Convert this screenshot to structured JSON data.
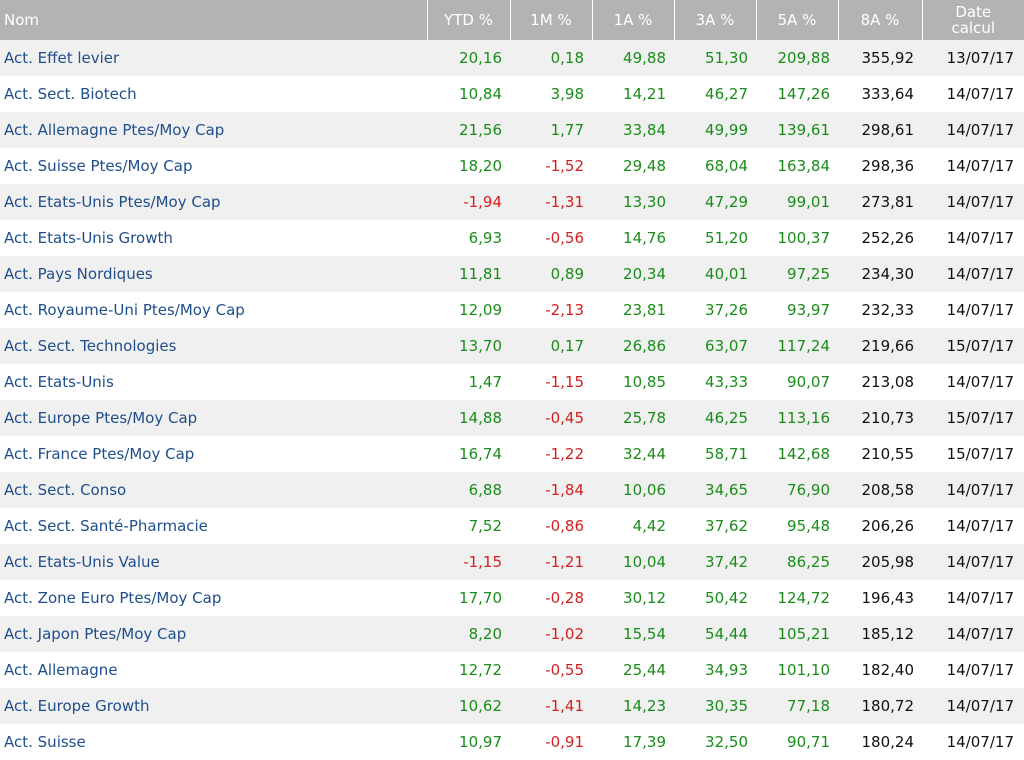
{
  "columns": {
    "name": "Nom",
    "ytd": "YTD %",
    "m1": "1M %",
    "a1": "1A %",
    "a3": "3A %",
    "a5": "5A %",
    "a8": "8A %",
    "date": "Date calcul"
  },
  "rows": [
    {
      "name": "Act. Effet levier",
      "ytd": "20,16",
      "m1": "0,18",
      "a1": "49,88",
      "a3": "51,30",
      "a5": "209,88",
      "a8": "355,92",
      "date": "13/07/17"
    },
    {
      "name": "Act. Sect. Biotech",
      "ytd": "10,84",
      "m1": "3,98",
      "a1": "14,21",
      "a3": "46,27",
      "a5": "147,26",
      "a8": "333,64",
      "date": "14/07/17"
    },
    {
      "name": "Act. Allemagne Ptes/Moy Cap",
      "ytd": "21,56",
      "m1": "1,77",
      "a1": "33,84",
      "a3": "49,99",
      "a5": "139,61",
      "a8": "298,61",
      "date": "14/07/17"
    },
    {
      "name": "Act. Suisse Ptes/Moy Cap",
      "ytd": "18,20",
      "m1": "-1,52",
      "a1": "29,48",
      "a3": "68,04",
      "a5": "163,84",
      "a8": "298,36",
      "date": "14/07/17"
    },
    {
      "name": "Act. Etats-Unis Ptes/Moy Cap",
      "ytd": "-1,94",
      "m1": "-1,31",
      "a1": "13,30",
      "a3": "47,29",
      "a5": "99,01",
      "a8": "273,81",
      "date": "14/07/17"
    },
    {
      "name": "Act. Etats-Unis Growth",
      "ytd": "6,93",
      "m1": "-0,56",
      "a1": "14,76",
      "a3": "51,20",
      "a5": "100,37",
      "a8": "252,26",
      "date": "14/07/17"
    },
    {
      "name": "Act. Pays Nordiques",
      "ytd": "11,81",
      "m1": "0,89",
      "a1": "20,34",
      "a3": "40,01",
      "a5": "97,25",
      "a8": "234,30",
      "date": "14/07/17"
    },
    {
      "name": "Act. Royaume-Uni Ptes/Moy Cap",
      "ytd": "12,09",
      "m1": "-2,13",
      "a1": "23,81",
      "a3": "37,26",
      "a5": "93,97",
      "a8": "232,33",
      "date": "14/07/17"
    },
    {
      "name": "Act. Sect. Technologies",
      "ytd": "13,70",
      "m1": "0,17",
      "a1": "26,86",
      "a3": "63,07",
      "a5": "117,24",
      "a8": "219,66",
      "date": "15/07/17"
    },
    {
      "name": "Act. Etats-Unis",
      "ytd": "1,47",
      "m1": "-1,15",
      "a1": "10,85",
      "a3": "43,33",
      "a5": "90,07",
      "a8": "213,08",
      "date": "14/07/17"
    },
    {
      "name": "Act. Europe Ptes/Moy Cap",
      "ytd": "14,88",
      "m1": "-0,45",
      "a1": "25,78",
      "a3": "46,25",
      "a5": "113,16",
      "a8": "210,73",
      "date": "15/07/17"
    },
    {
      "name": "Act. France Ptes/Moy Cap",
      "ytd": "16,74",
      "m1": "-1,22",
      "a1": "32,44",
      "a3": "58,71",
      "a5": "142,68",
      "a8": "210,55",
      "date": "15/07/17"
    },
    {
      "name": "Act. Sect. Conso",
      "ytd": "6,88",
      "m1": "-1,84",
      "a1": "10,06",
      "a3": "34,65",
      "a5": "76,90",
      "a8": "208,58",
      "date": "14/07/17"
    },
    {
      "name": "Act. Sect. Santé-Pharmacie",
      "ytd": "7,52",
      "m1": "-0,86",
      "a1": "4,42",
      "a3": "37,62",
      "a5": "95,48",
      "a8": "206,26",
      "date": "14/07/17"
    },
    {
      "name": "Act. Etats-Unis Value",
      "ytd": "-1,15",
      "m1": "-1,21",
      "a1": "10,04",
      "a3": "37,42",
      "a5": "86,25",
      "a8": "205,98",
      "date": "14/07/17"
    },
    {
      "name": "Act. Zone Euro Ptes/Moy Cap",
      "ytd": "17,70",
      "m1": "-0,28",
      "a1": "30,12",
      "a3": "50,42",
      "a5": "124,72",
      "a8": "196,43",
      "date": "14/07/17"
    },
    {
      "name": "Act. Japon Ptes/Moy Cap",
      "ytd": "8,20",
      "m1": "-1,02",
      "a1": "15,54",
      "a3": "54,44",
      "a5": "105,21",
      "a8": "185,12",
      "date": "14/07/17"
    },
    {
      "name": "Act. Allemagne",
      "ytd": "12,72",
      "m1": "-0,55",
      "a1": "25,44",
      "a3": "34,93",
      "a5": "101,10",
      "a8": "182,40",
      "date": "14/07/17"
    },
    {
      "name": "Act. Europe Growth",
      "ytd": "10,62",
      "m1": "-1,41",
      "a1": "14,23",
      "a3": "30,35",
      "a5": "77,18",
      "a8": "180,72",
      "date": "14/07/17"
    },
    {
      "name": "Act. Suisse",
      "ytd": "10,97",
      "m1": "-0,91",
      "a1": "17,39",
      "a3": "32,50",
      "a5": "90,71",
      "a8": "180,24",
      "date": "14/07/17"
    }
  ],
  "colors": {
    "header_bg": "#b3b3b3",
    "link": "#1f4e8c",
    "positive": "#198c19",
    "negative": "#d42020",
    "row_alt": "#f0f0f0"
  }
}
